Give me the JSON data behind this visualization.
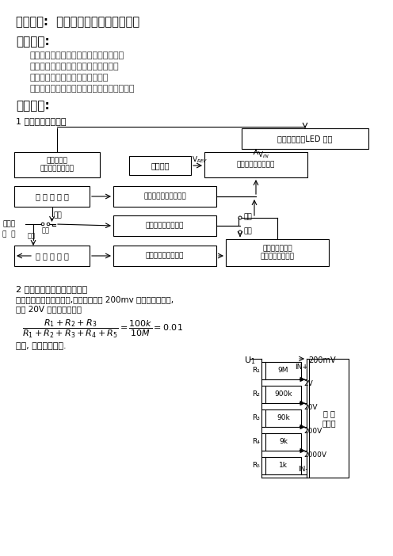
{
  "bg": "#ffffff",
  "title": "实验名称:  数字万用表设计性实验讲义",
  "sec1": "实验目的:",
  "objectives": [
    "掌握数字万用表的工作原理、组成和特性",
    "掌握数字万用表的校准方法和使用方法",
    "掌握分压及分流电路的连接和计算",
    "了解整流滤波电路和过压过流保护电路的功用"
  ],
  "sec2": "实验原理:",
  "sub1": "1 数字万用表的组成",
  "sub2": "2 设计组装多量程直流电压表",
  "txt1": "采用串联电阻分压器原理,将最大电压为 200mv 的表头量程扩大,",
  "txt2": "其中 20V 量程缩放比例为",
  "ftxt": "这样, 就扩大了量程.",
  "r_labels": [
    "9M",
    "900k",
    "90k",
    "9k",
    "1k"
  ],
  "v_labels": [
    "200mV",
    "2V",
    "20V",
    "200V",
    "2000V"
  ],
  "r_subscripts": [
    "R₁",
    "R₂",
    "R₃",
    "R₄",
    "R₅"
  ]
}
